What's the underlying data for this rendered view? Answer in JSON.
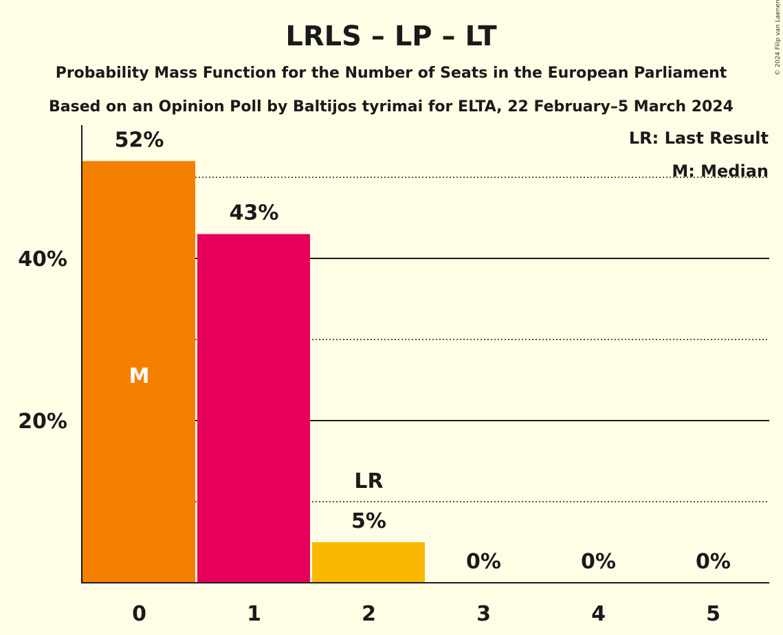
{
  "chart_data": {
    "type": "bar",
    "title": "LRLS – LP – LT",
    "subtitle_1": "Probability Mass Function for the Number of Seats in the European Parliament",
    "subtitle_2": "Based on an Opinion Poll by Baltijos tyrimai for ELTA, 22 February–5 March 2024",
    "categories": [
      "0",
      "1",
      "2",
      "3",
      "4",
      "5"
    ],
    "values": [
      52,
      43,
      5,
      0,
      0,
      0
    ],
    "value_labels": [
      "52%",
      "43%",
      "5%",
      "0%",
      "0%",
      "0%"
    ],
    "bar_colors": [
      "#F58000",
      "#E6005C",
      "#FAB900",
      "#F58000",
      "#F58000",
      "#F58000"
    ],
    "ylim": [
      0,
      55
    ],
    "y_ticks": [
      {
        "value": 20,
        "label": "20%"
      },
      {
        "value": 40,
        "label": "40%"
      }
    ],
    "y_dotted_gridlines": [
      10,
      30,
      50
    ],
    "median_index": 0,
    "median_marker": "M",
    "last_result_index": 2,
    "last_result_marker": "LR",
    "legend": {
      "position": "top-right",
      "last_result": "LR: Last Result",
      "median": "M: Median"
    },
    "credit": "© 2024 Filip van Laenen"
  }
}
